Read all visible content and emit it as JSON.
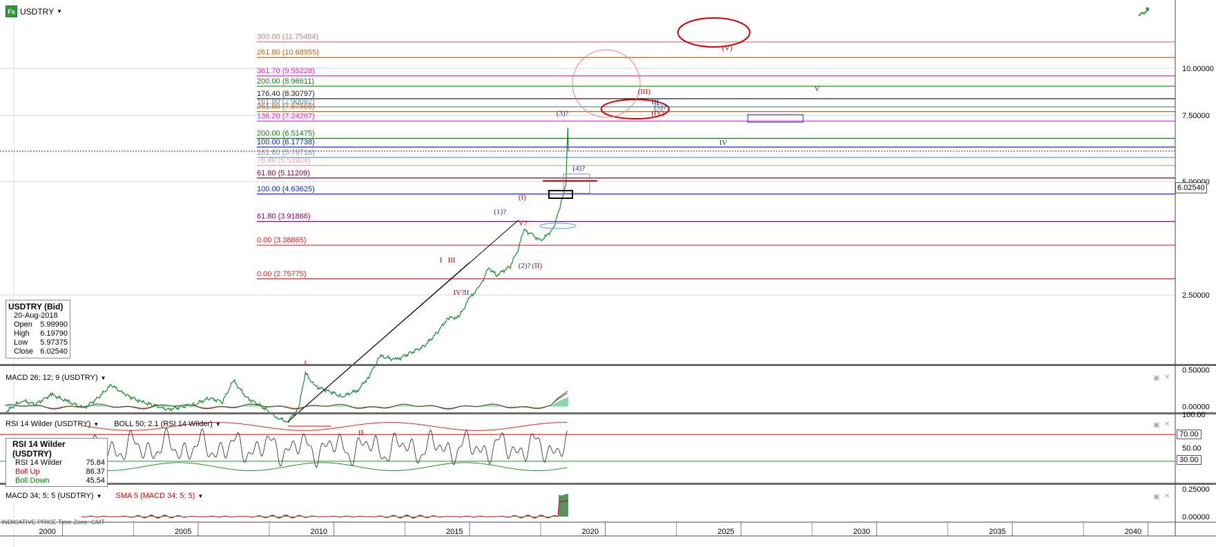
{
  "symbol": {
    "badge": "Fx",
    "name": "USDTRY"
  },
  "info_box": {
    "title": "USDTRY (Bid)",
    "date": "20-Aug-2018",
    "rows": [
      {
        "label": "Open",
        "value": "5.99990"
      },
      {
        "label": "High",
        "value": "6.19790"
      },
      {
        "label": "Low",
        "value": "5.97375"
      },
      {
        "label": "Close",
        "value": "6.02540"
      }
    ]
  },
  "last_price": "6.02540",
  "panels": {
    "macd1": {
      "label": "MACD 26; 12; 9 (USDTRY)"
    },
    "rsi": {
      "label": "RSI 14 Wilder (USDTRY)",
      "boll_label": "BOLL 50; 2.1 (RSI 14 Wilder)",
      "level_high": "70.00",
      "level_low": "30.00"
    },
    "macd2": {
      "label": "MACD 34; 5; 5 (USDTRY)",
      "sma_label": "SMA 5 (MACD 34; 5; 5)"
    }
  },
  "rsi_box": {
    "title": "RSI 14 Wilder (USDTRY)",
    "rows": [
      {
        "label": "RSI 14 Wilder",
        "value": "75.84",
        "color": "#000000"
      },
      {
        "label": "Boll Up",
        "value": "86.37",
        "color": "#d40000"
      },
      {
        "label": "Boll Down",
        "value": "45.54",
        "color": "#008000"
      }
    ]
  },
  "footer_note": "INDICATIVE PRICE   Time Zone: GMT",
  "chart_data": [
    {
      "type": "line",
      "name": "USDTRY",
      "scale": "log",
      "ylim": [
        1.0,
        13.0
      ],
      "y_ticks": [
        "10.00000",
        "7.50000",
        "5.00000",
        "2.50000"
      ],
      "y_tick_values": [
        10.0,
        7.5,
        5.0,
        2.5
      ],
      "x_ticks": [
        "2000",
        "2005",
        "2010",
        "2015",
        "2020",
        "2025",
        "2030",
        "2035",
        "2040"
      ],
      "x_tick_values": [
        2000,
        2005,
        2010,
        2015,
        2020,
        2025,
        2030,
        2035,
        2040
      ],
      "xlim": [
        1997.7,
        2041.0
      ],
      "series_points": [
        [
          1997.9,
          1.22
        ],
        [
          1998.5,
          1.31
        ],
        [
          1999.0,
          1.28
        ],
        [
          1999.6,
          1.36
        ],
        [
          2000.2,
          1.3
        ],
        [
          2000.8,
          1.25
        ],
        [
          2001.3,
          1.33
        ],
        [
          2001.8,
          1.44
        ],
        [
          2002.3,
          1.36
        ],
        [
          2002.9,
          1.3
        ],
        [
          2003.4,
          1.27
        ],
        [
          2003.9,
          1.24
        ],
        [
          2004.4,
          1.26
        ],
        [
          2004.9,
          1.28
        ],
        [
          2005.4,
          1.33
        ],
        [
          2005.9,
          1.3
        ],
        [
          2006.3,
          1.48
        ],
        [
          2006.8,
          1.33
        ],
        [
          2007.3,
          1.27
        ],
        [
          2007.9,
          1.18
        ],
        [
          2008.3,
          1.15
        ],
        [
          2008.7,
          1.25
        ],
        [
          2008.95,
          1.55
        ],
        [
          2009.3,
          1.43
        ],
        [
          2009.8,
          1.39
        ],
        [
          2010.3,
          1.34
        ],
        [
          2010.9,
          1.4
        ],
        [
          2011.3,
          1.52
        ],
        [
          2011.7,
          1.72
        ],
        [
          2012.3,
          1.68
        ],
        [
          2012.8,
          1.75
        ],
        [
          2013.3,
          1.82
        ],
        [
          2013.8,
          1.98
        ],
        [
          2014.2,
          2.17
        ],
        [
          2014.6,
          2.18
        ],
        [
          2015.0,
          2.45
        ],
        [
          2015.4,
          2.65
        ],
        [
          2015.7,
          2.95
        ],
        [
          2016.0,
          2.82
        ],
        [
          2016.5,
          2.98
        ],
        [
          2016.8,
          3.32
        ],
        [
          2017.0,
          3.72
        ],
        [
          2017.3,
          3.62
        ],
        [
          2017.6,
          3.48
        ],
        [
          2017.9,
          3.62
        ],
        [
          2018.1,
          3.78
        ],
        [
          2018.3,
          4.2
        ],
        [
          2018.45,
          4.6
        ],
        [
          2018.55,
          4.88
        ],
        [
          2018.62,
          6.95
        ],
        [
          2018.64,
          6.02
        ]
      ],
      "fib_levels": [
        {
          "label": "300.00 (11.75484)",
          "value": 11.75484,
          "color": "#d08080"
        },
        {
          "label": "261.80 (10.68955)",
          "value": 10.68955,
          "color": "#d06010"
        },
        {
          "label": "361.70 (9.55228)",
          "value": 9.55228,
          "color": "#e020e0"
        },
        {
          "label": "200.00 (8.96611)",
          "value": 8.96611,
          "color": "#108010"
        },
        {
          "label": "176.40 (8.30797)",
          "value": 8.30797,
          "color": "#202020"
        },
        {
          "label": "161.80 (7.90082)",
          "value": 7.90082,
          "color": "#5a8aa8"
        },
        {
          "label": "261.80 (7.67566)",
          "value": 7.67566,
          "color": "#d06010"
        },
        {
          "label": "138.20 (7.24267)",
          "value": 7.24267,
          "color": "#e020e0"
        },
        {
          "label": "200.00 (6.51475)",
          "value": 6.51475,
          "color": "#108010"
        },
        {
          "label": "100.00 (6.17738)",
          "value": 6.17738,
          "color": "#1020d0"
        },
        {
          "label": "161.80 (5.79716)",
          "value": 5.79716,
          "color": "#6a9ab8"
        },
        {
          "label": "76.40 (5.51924)",
          "value": 5.51924,
          "color": "#f0a0a0"
        },
        {
          "label": "61.80 (5.11209)",
          "value": 5.11209,
          "color": "#800040"
        },
        {
          "label": "100.00 (4.63625)",
          "value": 4.63625,
          "color": "#1020d0"
        },
        {
          "label": "61.80 (3.91866)",
          "value": 3.91866,
          "color": "#800080"
        },
        {
          "label": "0.00 (3.38865)",
          "value": 3.38865,
          "color": "#e02020"
        },
        {
          "label": "0.00 (2.75775)",
          "value": 2.75775,
          "color": "#e02020"
        }
      ],
      "wave_labels": [
        {
          "text": "I",
          "x": 2008.9,
          "y": 1.62,
          "color": "#d40000"
        },
        {
          "text": "II",
          "x": 2010.9,
          "y": 1.06,
          "color": "#d40000"
        },
        {
          "text": "I",
          "x": 2013.9,
          "y": 3.05,
          "color": "#1b2fa0"
        },
        {
          "text": "III",
          "x": 2014.2,
          "y": 3.05,
          "color": "#d40000"
        },
        {
          "text": "IV?",
          "x": 2014.4,
          "y": 2.5,
          "color": "#d40000"
        },
        {
          "text": "II",
          "x": 2014.8,
          "y": 2.5,
          "color": "#1b2fa0"
        },
        {
          "text": "(1)?",
          "x": 2015.9,
          "y": 4.1,
          "color": "#1b2fa0"
        },
        {
          "text": "(I)",
          "x": 2016.8,
          "y": 4.48,
          "color": "#d40000"
        },
        {
          "text": "V?",
          "x": 2016.8,
          "y": 3.82,
          "color": "#d40000"
        },
        {
          "text": "(2)?",
          "x": 2016.8,
          "y": 2.95,
          "color": "#1b2fa0"
        },
        {
          "text": "(II)",
          "x": 2017.3,
          "y": 2.95,
          "color": "#d40000"
        },
        {
          "text": "(3)?",
          "x": 2018.2,
          "y": 7.48,
          "color": "#1b2fa0"
        },
        {
          "text": "(4)?",
          "x": 2018.8,
          "y": 5.35,
          "color": "#1b2fa0"
        },
        {
          "text": "(III)",
          "x": 2021.2,
          "y": 8.55,
          "color": "#d40000"
        },
        {
          "text": "III",
          "x": 2021.7,
          "y": 8.03,
          "color": "#1b2fa0"
        },
        {
          "text": "(5)?",
          "x": 2021.8,
          "y": 7.8,
          "color": "#1b2fa0"
        },
        {
          "text": "(IV)",
          "x": 2021.7,
          "y": 7.5,
          "color": "#d40000"
        },
        {
          "text": "IV",
          "x": 2024.2,
          "y": 6.25,
          "color": "#1b2fa0"
        },
        {
          "text": "V",
          "x": 2027.7,
          "y": 8.7,
          "color": "#1b2fa0"
        },
        {
          "text": "(V)",
          "x": 2024.3,
          "y": 11.15,
          "color": "#d40000"
        }
      ]
    },
    {
      "type": "area",
      "name": "MACD 26; 12; 9 (USDTRY)",
      "y_ticks": [
        "0.50000",
        "0.00000"
      ],
      "y_tick_values": [
        0.5,
        0.0
      ],
      "ylim": [
        -0.05,
        0.55
      ]
    },
    {
      "type": "line",
      "name": "RSI 14 Wilder (USDTRY)",
      "y_ticks": [
        "100.00",
        "50.00",
        "0.00"
      ],
      "y_tick_values": [
        100,
        50,
        0
      ],
      "ylim": [
        0,
        100
      ],
      "levels": [
        70,
        30
      ]
    },
    {
      "type": "bar",
      "name": "MACD 34; 5; 5 (USDTRY)",
      "y_ticks": [
        "0.25000",
        "0.00000"
      ],
      "y_tick_values": [
        0.25,
        0.0
      ],
      "ylim": [
        -0.05,
        0.28
      ]
    }
  ],
  "colors": {
    "price": "#138a2c",
    "macd_signal": "#e02020",
    "macd_hist": "#8fd4b0",
    "rsi_line": "#202020",
    "boll": "#e02020",
    "boll_low": "#209020",
    "grid": "#d4d4d4"
  }
}
